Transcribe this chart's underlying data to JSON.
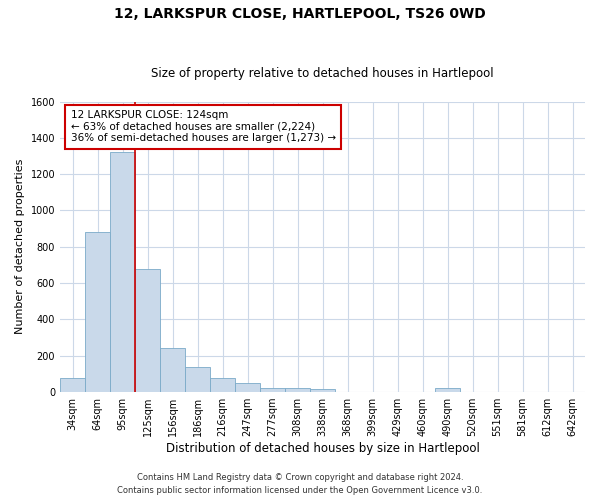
{
  "title": "12, LARKSPUR CLOSE, HARTLEPOOL, TS26 0WD",
  "subtitle": "Size of property relative to detached houses in Hartlepool",
  "xlabel": "Distribution of detached houses by size in Hartlepool",
  "ylabel": "Number of detached properties",
  "categories": [
    "34sqm",
    "64sqm",
    "95sqm",
    "125sqm",
    "156sqm",
    "186sqm",
    "216sqm",
    "247sqm",
    "277sqm",
    "308sqm",
    "338sqm",
    "368sqm",
    "399sqm",
    "429sqm",
    "460sqm",
    "490sqm",
    "520sqm",
    "551sqm",
    "581sqm",
    "612sqm",
    "642sqm"
  ],
  "values": [
    75,
    880,
    1320,
    675,
    245,
    140,
    80,
    50,
    25,
    25,
    15,
    0,
    0,
    0,
    0,
    25,
    0,
    0,
    0,
    0,
    0
  ],
  "bar_color": "#c9d9ea",
  "bar_edge_color": "#7aaac8",
  "vline_color": "#cc0000",
  "annotation_line1": "12 LARKSPUR CLOSE: 124sqm",
  "annotation_line2": "← 63% of detached houses are smaller (2,224)",
  "annotation_line3": "36% of semi-detached houses are larger (1,273) →",
  "annotation_box_color": "#cc0000",
  "ylim": [
    0,
    1600
  ],
  "yticks": [
    0,
    200,
    400,
    600,
    800,
    1000,
    1200,
    1400,
    1600
  ],
  "footer_line1": "Contains HM Land Registry data © Crown copyright and database right 2024.",
  "footer_line2": "Contains public sector information licensed under the Open Government Licence v3.0.",
  "bg_color": "#ffffff",
  "grid_color": "#ccd8e8",
  "title_fontsize": 10,
  "subtitle_fontsize": 8.5,
  "xlabel_fontsize": 8.5,
  "ylabel_fontsize": 8,
  "tick_fontsize": 7,
  "annot_fontsize": 7.5,
  "footer_fontsize": 6
}
